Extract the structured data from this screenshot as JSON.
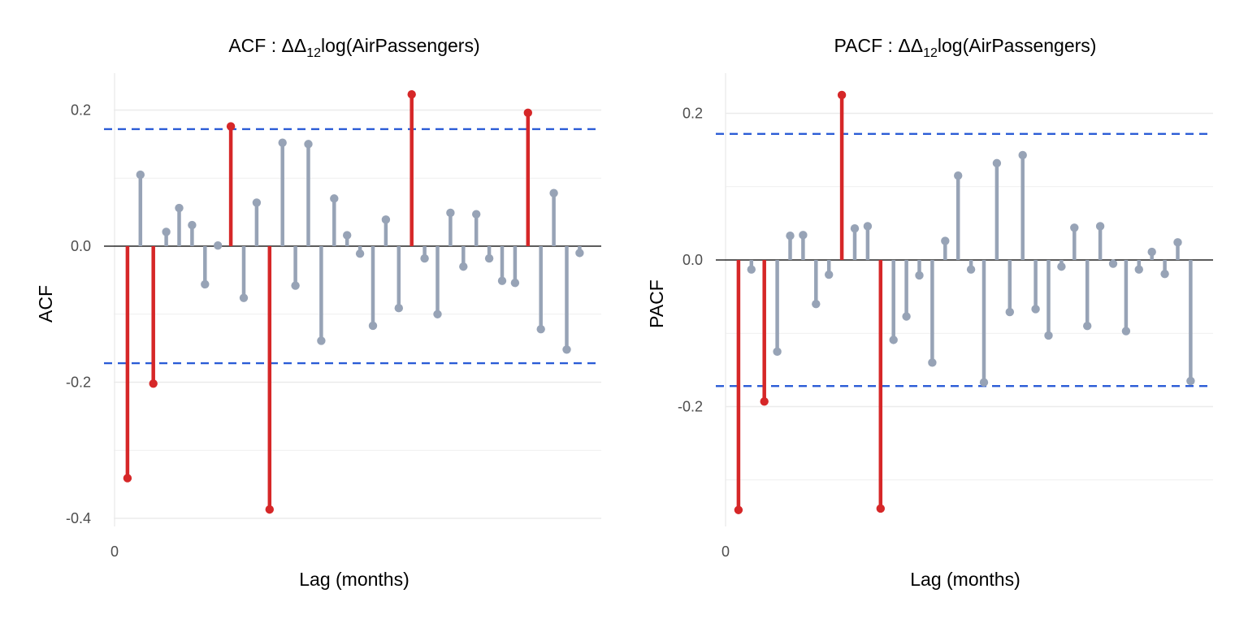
{
  "colors": {
    "significant": "#D62728",
    "normal": "#97A3B6",
    "bounds": "#2B5CD6",
    "zero_line": "#000000",
    "grid": "#EBEBEB"
  },
  "chart_data": [
    {
      "type": "bar",
      "style": "lollipop",
      "title_prefix": "ACF : ",
      "title_symbol": "ΔΔ",
      "title_sub": "12",
      "title_rest": "log(AirPassengers)",
      "xlabel": "Lag (months)",
      "ylabel": "ACF",
      "x_ticks": [
        "0"
      ],
      "y_ticks": [
        "0.2",
        "0.0",
        "-0.2",
        "-0.4"
      ],
      "ylim": [
        -0.4,
        0.25
      ],
      "xlim": [
        0,
        37
      ],
      "bounds": [
        0.172,
        -0.172
      ],
      "grid": true,
      "lags": [
        1,
        2,
        3,
        4,
        5,
        6,
        7,
        8,
        9,
        10,
        11,
        12,
        13,
        14,
        15,
        16,
        17,
        18,
        19,
        20,
        21,
        22,
        23,
        24,
        25,
        26,
        27,
        28,
        29,
        30,
        31,
        32,
        33,
        34,
        35,
        36
      ],
      "values": [
        -0.341,
        0.105,
        -0.202,
        0.021,
        0.056,
        0.031,
        -0.056,
        0.001,
        0.176,
        -0.076,
        0.064,
        -0.387,
        0.152,
        -0.058,
        0.15,
        -0.139,
        0.07,
        0.016,
        -0.011,
        -0.117,
        0.039,
        -0.091,
        0.223,
        -0.018,
        -0.1,
        0.049,
        -0.03,
        0.047,
        -0.018,
        -0.051,
        -0.054,
        0.196,
        -0.122,
        0.078,
        -0.152,
        -0.01
      ]
    },
    {
      "type": "bar",
      "style": "lollipop",
      "title_prefix": "PACF : ",
      "title_symbol": "ΔΔ",
      "title_sub": "12",
      "title_rest": "log(AirPassengers)",
      "xlabel": "Lag (months)",
      "ylabel": "PACF",
      "x_ticks": [
        "0"
      ],
      "y_ticks": [
        "0.2",
        "0.0",
        "-0.2"
      ],
      "ylim": [
        -0.36,
        0.25
      ],
      "xlim": [
        0,
        37
      ],
      "bounds": [
        0.172,
        -0.172
      ],
      "grid": true,
      "lags": [
        1,
        2,
        3,
        4,
        5,
        6,
        7,
        8,
        9,
        10,
        11,
        12,
        13,
        14,
        15,
        16,
        17,
        18,
        19,
        20,
        21,
        22,
        23,
        24,
        25,
        26,
        27,
        28,
        29,
        30,
        31,
        32,
        33,
        34,
        35,
        36
      ],
      "values": [
        -0.341,
        -0.013,
        -0.193,
        -0.125,
        0.033,
        0.034,
        -0.06,
        -0.02,
        0.225,
        0.043,
        0.046,
        -0.339,
        -0.109,
        -0.077,
        -0.021,
        -0.14,
        0.026,
        0.115,
        -0.013,
        -0.167,
        0.132,
        -0.071,
        0.143,
        -0.067,
        -0.103,
        -0.009,
        0.044,
        -0.09,
        0.046,
        -0.005,
        -0.097,
        -0.013,
        0.011,
        -0.019,
        0.024,
        -0.165
      ]
    }
  ]
}
